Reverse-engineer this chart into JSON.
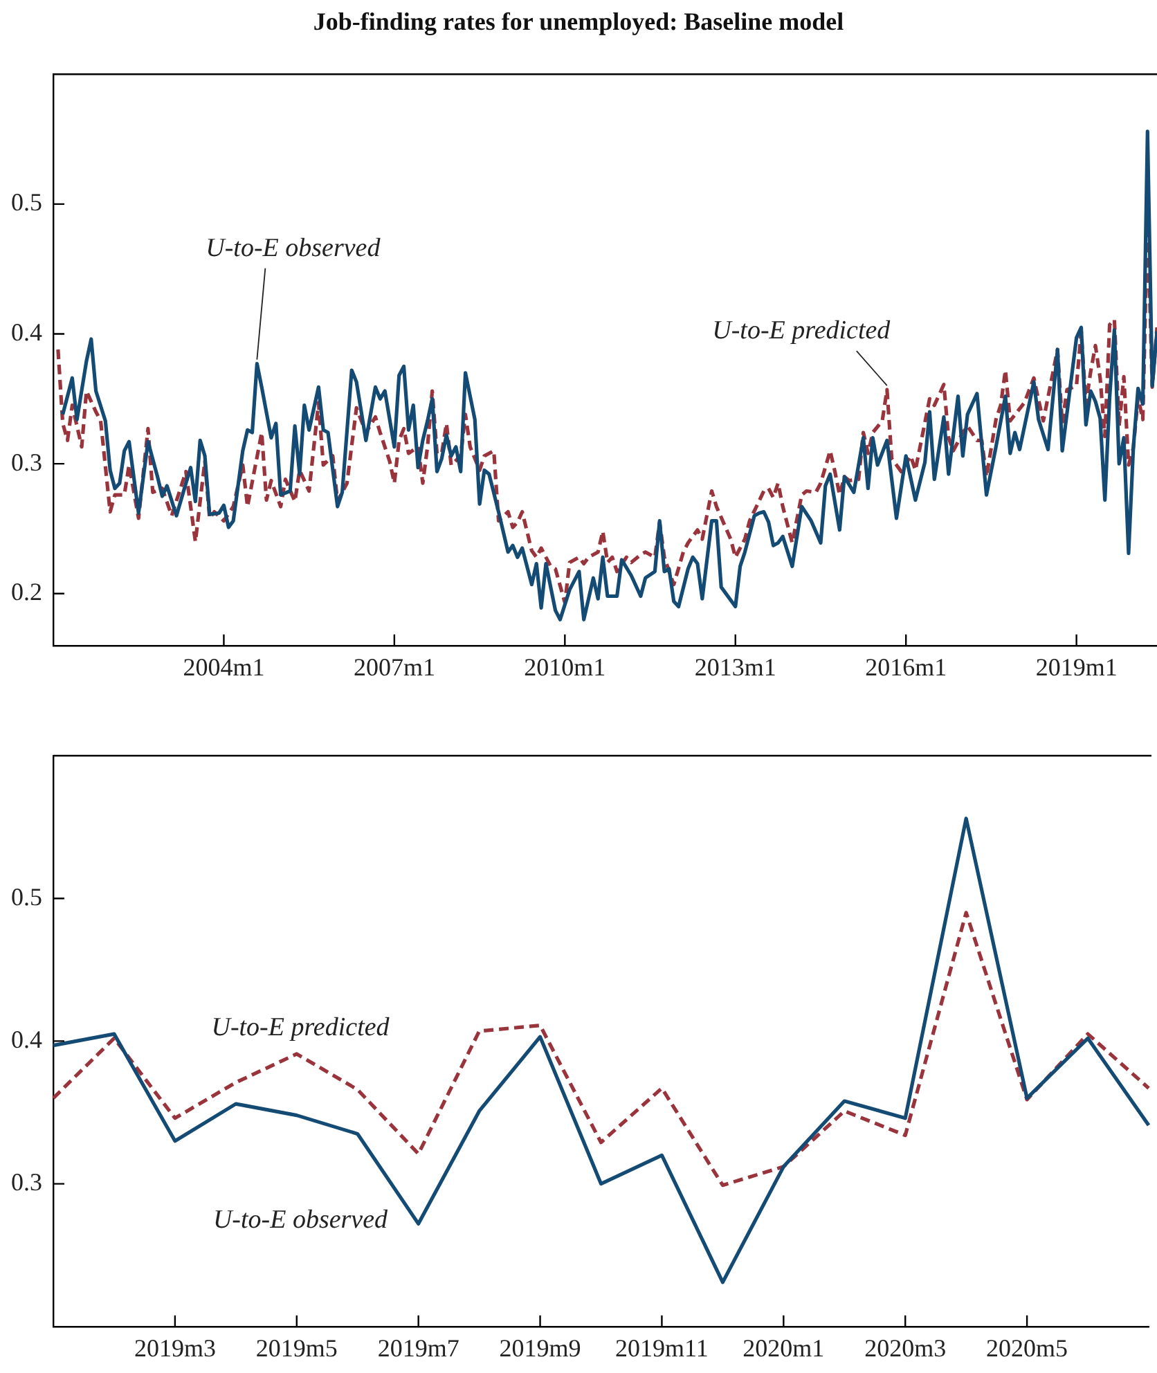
{
  "chart_data": [
    {
      "type": "line",
      "title": "Job-finding rates for unemployed: Baseline model",
      "xlim": [
        "2001-01",
        "2020-06"
      ],
      "xticks": [
        {
          "value": "2004-01",
          "label": "2004m1"
        },
        {
          "value": "2007-01",
          "label": "2007m1"
        },
        {
          "value": "2010-01",
          "label": "2010m1"
        },
        {
          "value": "2013-01",
          "label": "2013m1"
        },
        {
          "value": "2016-01",
          "label": "2016m1"
        },
        {
          "value": "2019-01",
          "label": "2019m1"
        }
      ],
      "ylim": [
        0.16,
        0.6
      ],
      "yticks": [
        0.2,
        0.3,
        0.4,
        0.5
      ],
      "grid": false,
      "legend": false,
      "annotations": [
        {
          "text": "U-to-E observed",
          "x": "2004-08",
          "y": 0.377
        },
        {
          "text": "U-to-E predicted",
          "x": "2015-09",
          "y": 0.357
        }
      ],
      "series": [
        {
          "color": "#144b75",
          "line_style": "solid",
          "x": [
            "2001-03",
            "2001-05",
            "2001-06",
            "2001-08",
            "2001-09",
            "2001-10",
            "2001-12",
            "2002-01",
            "2002-02",
            "2002-03",
            "2002-04",
            "2002-05",
            "2002-07",
            "2002-09",
            "2002-11",
            "2002-12",
            "2003-01",
            "2003-03",
            "2003-05",
            "2003-06",
            "2003-07",
            "2003-08",
            "2003-09",
            "2003-10",
            "2003-12",
            "2004-01",
            "2004-02",
            "2004-03",
            "2004-05",
            "2004-06",
            "2004-07",
            "2004-08",
            "2004-09",
            "2004-11",
            "2004-12",
            "2005-01",
            "2005-03",
            "2005-04",
            "2005-05",
            "2005-06",
            "2005-07",
            "2005-09",
            "2005-10",
            "2005-11",
            "2006-01",
            "2006-02",
            "2006-04",
            "2006-05",
            "2006-07",
            "2006-09",
            "2006-10",
            "2006-11",
            "2007-01",
            "2007-02",
            "2007-03",
            "2007-04",
            "2007-05",
            "2007-06",
            "2007-07",
            "2007-08",
            "2007-09",
            "2007-10",
            "2007-11",
            "2007-12",
            "2008-01",
            "2008-02",
            "2008-03",
            "2008-04",
            "2008-06",
            "2008-07",
            "2008-08",
            "2008-09",
            "2008-11",
            "2009-01",
            "2009-02",
            "2009-03",
            "2009-04",
            "2009-06",
            "2009-07",
            "2009-08",
            "2009-09",
            "2009-11",
            "2009-12",
            "2010-02",
            "2010-04",
            "2010-05",
            "2010-07",
            "2010-08",
            "2010-09",
            "2010-10",
            "2010-12",
            "2011-01",
            "2011-03",
            "2011-05",
            "2011-06",
            "2011-08",
            "2011-09",
            "2011-10",
            "2011-11",
            "2011-12",
            "2012-01",
            "2012-03",
            "2012-04",
            "2012-05",
            "2012-06",
            "2012-08",
            "2012-09",
            "2012-10",
            "2013-01",
            "2013-02",
            "2013-03",
            "2013-05",
            "2013-06",
            "2013-07",
            "2013-08",
            "2013-09",
            "2013-10",
            "2013-11",
            "2014-01",
            "2014-03",
            "2014-05",
            "2014-07",
            "2014-08",
            "2014-09",
            "2014-11",
            "2014-12",
            "2015-02",
            "2015-04",
            "2015-05",
            "2015-06",
            "2015-07",
            "2015-09",
            "2015-11",
            "2016-01",
            "2016-03",
            "2016-05",
            "2016-06",
            "2016-07",
            "2016-09",
            "2016-10",
            "2016-12",
            "2017-01",
            "2017-02",
            "2017-04",
            "2017-06",
            "2017-08",
            "2017-10",
            "2017-11",
            "2017-12",
            "2018-01",
            "2018-04",
            "2018-05",
            "2018-07",
            "2018-09",
            "2018-10",
            "2019-01",
            "2019-02",
            "2019-03",
            "2019-04",
            "2019-05",
            "2019-06",
            "2019-07",
            "2019-08",
            "2019-09",
            "2019-10",
            "2019-11",
            "2019-12",
            "2020-01",
            "2020-02",
            "2020-03",
            "2020-04",
            "2020-05",
            "2020-06"
          ],
          "values": [
            0.338,
            0.366,
            0.334,
            0.379,
            0.396,
            0.356,
            0.333,
            0.295,
            0.281,
            0.285,
            0.31,
            0.317,
            0.262,
            0.317,
            0.29,
            0.275,
            0.283,
            0.26,
            0.285,
            0.297,
            0.271,
            0.318,
            0.306,
            0.261,
            0.262,
            0.268,
            0.251,
            0.256,
            0.31,
            0.326,
            0.324,
            0.377,
            0.359,
            0.32,
            0.331,
            0.276,
            0.279,
            0.329,
            0.292,
            0.345,
            0.326,
            0.359,
            0.326,
            0.324,
            0.267,
            0.278,
            0.372,
            0.363,
            0.318,
            0.359,
            0.35,
            0.356,
            0.313,
            0.368,
            0.375,
            0.326,
            0.345,
            0.297,
            0.318,
            0.333,
            0.35,
            0.294,
            0.304,
            0.322,
            0.306,
            0.313,
            0.294,
            0.37,
            0.334,
            0.269,
            0.295,
            0.292,
            0.263,
            0.232,
            0.237,
            0.228,
            0.235,
            0.207,
            0.223,
            0.189,
            0.223,
            0.187,
            0.18,
            0.203,
            0.217,
            0.18,
            0.212,
            0.196,
            0.228,
            0.198,
            0.198,
            0.226,
            0.214,
            0.198,
            0.212,
            0.217,
            0.256,
            0.217,
            0.219,
            0.194,
            0.19,
            0.219,
            0.228,
            0.223,
            0.196,
            0.256,
            0.256,
            0.205,
            0.19,
            0.221,
            0.232,
            0.26,
            0.262,
            0.263,
            0.255,
            0.237,
            0.239,
            0.244,
            0.221,
            0.267,
            0.256,
            0.239,
            0.283,
            0.292,
            0.249,
            0.29,
            0.278,
            0.32,
            0.281,
            0.32,
            0.299,
            0.318,
            0.258,
            0.306,
            0.272,
            0.301,
            0.34,
            0.288,
            0.336,
            0.292,
            0.352,
            0.306,
            0.338,
            0.354,
            0.276,
            0.313,
            0.352,
            0.308,
            0.324,
            0.311,
            0.363,
            0.334,
            0.311,
            0.388,
            0.31,
            0.397,
            0.405,
            0.33,
            0.356,
            0.348,
            0.335,
            0.272,
            0.351,
            0.403,
            0.3,
            0.32,
            0.231,
            0.312,
            0.358,
            0.346,
            0.556,
            0.36,
            0.402
          ]
        },
        {
          "color": "#9a343c",
          "line_style": "dashed",
          "x": [
            "2001-02",
            "2001-03",
            "2001-04",
            "2001-05",
            "2001-07",
            "2001-08",
            "2001-10",
            "2001-11",
            "2002-01",
            "2002-02",
            "2002-04",
            "2002-05",
            "2002-07",
            "2002-09",
            "2002-10",
            "2002-12",
            "2003-02",
            "2003-05",
            "2003-07",
            "2003-09",
            "2003-10",
            "2003-11",
            "2004-01",
            "2004-03",
            "2004-05",
            "2004-06",
            "2004-09",
            "2004-10",
            "2004-11",
            "2005-01",
            "2005-02",
            "2005-04",
            "2005-05",
            "2005-07",
            "2005-09",
            "2005-10",
            "2005-12",
            "2006-01",
            "2006-03",
            "2006-05",
            "2006-07",
            "2006-09",
            "2006-10",
            "2006-12",
            "2007-01",
            "2007-02",
            "2007-03",
            "2007-04",
            "2007-06",
            "2007-07",
            "2007-08",
            "2007-09",
            "2007-10",
            "2007-11",
            "2007-12",
            "2008-01",
            "2008-03",
            "2008-04",
            "2008-05",
            "2008-07",
            "2008-08",
            "2008-10",
            "2008-11",
            "2009-01",
            "2009-02",
            "2009-03",
            "2009-04",
            "2009-06",
            "2009-07",
            "2009-08",
            "2009-10",
            "2009-11",
            "2010-01",
            "2010-02",
            "2010-04",
            "2010-05",
            "2010-06",
            "2010-08",
            "2010-09",
            "2010-10",
            "2010-11",
            "2010-12",
            "2011-02",
            "2011-03",
            "2011-05",
            "2011-06",
            "2011-08",
            "2011-09",
            "2011-10",
            "2011-11",
            "2011-12",
            "2012-02",
            "2012-03",
            "2012-05",
            "2012-06",
            "2012-08",
            "2012-09",
            "2012-12",
            "2013-01",
            "2013-03",
            "2013-04",
            "2013-07",
            "2013-08",
            "2013-09",
            "2013-10",
            "2013-11",
            "2014-01",
            "2014-03",
            "2014-04",
            "2014-06",
            "2014-07",
            "2014-09",
            "2014-10",
            "2014-11",
            "2014-12",
            "2015-01",
            "2015-03",
            "2015-04",
            "2015-05",
            "2015-06",
            "2015-08",
            "2015-09",
            "2015-10",
            "2015-12",
            "2016-02",
            "2016-03",
            "2016-06",
            "2016-07",
            "2016-09",
            "2016-10",
            "2016-11",
            "2017-01",
            "2017-02",
            "2017-04",
            "2017-05",
            "2017-06",
            "2017-08",
            "2017-09",
            "2017-10",
            "2017-11",
            "2018-02",
            "2018-04",
            "2018-05",
            "2018-06",
            "2018-09",
            "2018-10",
            "2018-11",
            "2019-01",
            "2019-02",
            "2019-03",
            "2019-04",
            "2019-05",
            "2019-06",
            "2019-07",
            "2019-08",
            "2019-09",
            "2019-10",
            "2019-11",
            "2019-12",
            "2020-01",
            "2020-02",
            "2020-03",
            "2020-04",
            "2020-05",
            "2020-06"
          ],
          "values": [
            0.388,
            0.331,
            0.318,
            0.345,
            0.313,
            0.356,
            0.34,
            0.333,
            0.263,
            0.276,
            0.276,
            0.299,
            0.258,
            0.327,
            0.278,
            0.281,
            0.26,
            0.294,
            0.24,
            0.302,
            0.258,
            0.263,
            0.256,
            0.267,
            0.299,
            0.267,
            0.324,
            0.272,
            0.287,
            0.267,
            0.288,
            0.271,
            0.295,
            0.279,
            0.347,
            0.299,
            0.306,
            0.271,
            0.285,
            0.343,
            0.324,
            0.336,
            0.324,
            0.302,
            0.285,
            0.318,
            0.327,
            0.308,
            0.313,
            0.285,
            0.313,
            0.356,
            0.308,
            0.308,
            0.331,
            0.299,
            0.306,
            0.338,
            0.313,
            0.295,
            0.306,
            0.31,
            0.256,
            0.263,
            0.251,
            0.255,
            0.263,
            0.233,
            0.228,
            0.235,
            0.221,
            0.219,
            0.193,
            0.224,
            0.228,
            0.223,
            0.228,
            0.232,
            0.248,
            0.224,
            0.228,
            0.217,
            0.228,
            0.224,
            0.23,
            0.232,
            0.228,
            0.255,
            0.228,
            0.217,
            0.207,
            0.232,
            0.239,
            0.249,
            0.242,
            0.279,
            0.267,
            0.242,
            0.228,
            0.242,
            0.256,
            0.279,
            0.281,
            0.274,
            0.285,
            0.267,
            0.239,
            0.276,
            0.279,
            0.278,
            0.285,
            0.31,
            0.294,
            0.276,
            0.29,
            0.287,
            0.288,
            0.324,
            0.308,
            0.324,
            0.333,
            0.357,
            0.304,
            0.294,
            0.306,
            0.295,
            0.35,
            0.345,
            0.361,
            0.32,
            0.31,
            0.324,
            0.329,
            0.318,
            0.318,
            0.29,
            0.334,
            0.345,
            0.372,
            0.333,
            0.347,
            0.366,
            0.349,
            0.333,
            0.388,
            0.331,
            0.357,
            0.36,
            0.402,
            0.346,
            0.371,
            0.391,
            0.366,
            0.321,
            0.407,
            0.411,
            0.329,
            0.367,
            0.299,
            0.312,
            0.351,
            0.334,
            0.49,
            0.359,
            0.405
          ]
        }
      ]
    },
    {
      "type": "line",
      "categories": [
        null,
        null,
        "2019m3",
        null,
        "2019m5",
        null,
        "2019m7",
        null,
        "2019m9",
        null,
        "2019m11",
        null,
        "2020m1",
        null,
        "2020m3",
        null,
        "2020m5",
        null,
        null
      ],
      "ylim": [
        0.2,
        0.6
      ],
      "yticks": [
        0.3,
        0.4,
        0.5
      ],
      "grid": false,
      "legend": false,
      "series": [
        {
          "name": "U-to-E observed",
          "color": "#144b75",
          "line_style": "solid",
          "values": [
            0.397,
            0.405,
            0.33,
            0.356,
            0.348,
            0.335,
            0.272,
            0.351,
            0.403,
            0.3,
            0.32,
            0.231,
            0.312,
            0.358,
            0.346,
            0.556,
            0.36,
            0.402,
            0.341
          ]
        },
        {
          "name": "U-to-E predicted",
          "color": "#9a343c",
          "line_style": "dashed",
          "values": [
            0.36,
            0.402,
            0.346,
            0.371,
            0.391,
            0.366,
            0.321,
            0.407,
            0.411,
            0.329,
            0.367,
            0.299,
            0.312,
            0.351,
            0.334,
            0.49,
            0.359,
            0.405,
            0.367
          ]
        }
      ]
    }
  ]
}
